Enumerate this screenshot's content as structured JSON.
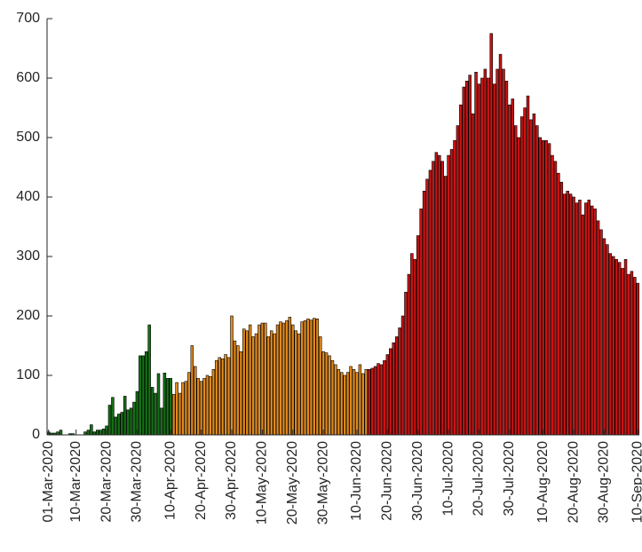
{
  "chart_data": {
    "type": "bar",
    "categories": [
      "01-Mar-2020",
      null,
      null,
      null,
      null,
      null,
      null,
      null,
      null,
      "10-Mar-2020",
      null,
      null,
      null,
      null,
      null,
      null,
      null,
      null,
      null,
      "20-Mar-2020",
      null,
      null,
      null,
      null,
      null,
      null,
      null,
      null,
      null,
      "30-Mar-2020",
      null,
      null,
      null,
      null,
      null,
      null,
      null,
      null,
      null,
      null,
      "10-Apr-2020",
      null,
      null,
      null,
      null,
      null,
      null,
      null,
      null,
      null,
      "20-Apr-2020",
      null,
      null,
      null,
      null,
      null,
      null,
      null,
      null,
      null,
      "30-Apr-2020",
      null,
      null,
      null,
      null,
      null,
      null,
      null,
      null,
      null,
      "10-May-2020",
      null,
      null,
      null,
      null,
      null,
      null,
      null,
      null,
      null,
      "20-May-2020",
      null,
      null,
      null,
      null,
      null,
      null,
      null,
      null,
      null,
      "30-May-2020",
      null,
      null,
      null,
      null,
      null,
      null,
      null,
      null,
      null,
      null,
      "10-Jun-2020",
      null,
      null,
      null,
      null,
      null,
      null,
      null,
      null,
      null,
      "20-Jun-2020",
      null,
      null,
      null,
      null,
      null,
      null,
      null,
      null,
      null,
      "30-Jun-2020",
      null,
      null,
      null,
      null,
      null,
      null,
      null,
      null,
      null,
      "10-Jul-2020",
      null,
      null,
      null,
      null,
      null,
      null,
      null,
      null,
      null,
      "20-Jul-2020",
      null,
      null,
      null,
      null,
      null,
      null,
      null,
      null,
      null,
      "30-Jul-2020",
      null,
      null,
      null,
      null,
      null,
      null,
      null,
      null,
      null,
      null,
      "10-Aug-2020",
      null,
      null,
      null,
      null,
      null,
      null,
      null,
      null,
      null,
      "20-Aug-2020",
      null,
      null,
      null,
      null,
      null,
      null,
      null,
      null,
      null,
      "30-Aug-2020",
      null,
      null,
      null,
      null,
      null,
      null,
      null,
      null,
      null,
      null,
      "10-Sep-2020"
    ],
    "series": [
      {
        "color": "#157015",
        "values": [
          5,
          3,
          3,
          5,
          8,
          0,
          0,
          2,
          2,
          0,
          0,
          0,
          5,
          8,
          17,
          5,
          8,
          8,
          10,
          15,
          50,
          63,
          30,
          35,
          38,
          65,
          42,
          45,
          55,
          73,
          133,
          133,
          140,
          185,
          80,
          70,
          103,
          45,
          104,
          95,
          95,
          null,
          null,
          null,
          null,
          null,
          null,
          null,
          null,
          null,
          null,
          null,
          null,
          null,
          null,
          null,
          null,
          null,
          null,
          null,
          null,
          null,
          null,
          null,
          null,
          null,
          null,
          null,
          null,
          null,
          null,
          null,
          null,
          null,
          null,
          null,
          null,
          null,
          null,
          null,
          null,
          null,
          null,
          null,
          null,
          null,
          null,
          null,
          null,
          null,
          null,
          null,
          null,
          null,
          null,
          null,
          null,
          null,
          null,
          null,
          null,
          null,
          null,
          null,
          null,
          null,
          null,
          null,
          null,
          null,
          null,
          null,
          null,
          null,
          null,
          null,
          null,
          null,
          null,
          null,
          null,
          null,
          null,
          null,
          null,
          null,
          null,
          null,
          null,
          null,
          null,
          null,
          null,
          null,
          null,
          null,
          null,
          null,
          null,
          null,
          null,
          null,
          null,
          null,
          null,
          null,
          null,
          null,
          null,
          null,
          null,
          null,
          null,
          null,
          null,
          null,
          null,
          null,
          null,
          null,
          null,
          null,
          null,
          null,
          null,
          null,
          null,
          null,
          null,
          null,
          null,
          null,
          null,
          null,
          null,
          null,
          null,
          null,
          null,
          null,
          null,
          null,
          null,
          null,
          null,
          null,
          null,
          null,
          null,
          null,
          null,
          null,
          null,
          null
        ]
      },
      {
        "color": "#e08a1e",
        "values": [
          null,
          null,
          null,
          null,
          null,
          null,
          null,
          null,
          null,
          null,
          null,
          null,
          null,
          null,
          null,
          null,
          null,
          null,
          null,
          null,
          null,
          null,
          null,
          null,
          null,
          null,
          null,
          null,
          null,
          null,
          null,
          null,
          null,
          null,
          null,
          null,
          null,
          null,
          null,
          null,
          null,
          68,
          88,
          70,
          88,
          90,
          105,
          150,
          115,
          95,
          90,
          95,
          100,
          98,
          110,
          125,
          130,
          128,
          135,
          130,
          200,
          158,
          150,
          140,
          178,
          175,
          185,
          165,
          170,
          185,
          188,
          188,
          165,
          175,
          170,
          185,
          190,
          188,
          192,
          198,
          185,
          175,
          170,
          190,
          192,
          195,
          193,
          196,
          195,
          165,
          140,
          138,
          133,
          125,
          118,
          110,
          105,
          100,
          105,
          115,
          110,
          105,
          118,
          103,
          110,
          null,
          null,
          null,
          null,
          null,
          null,
          null,
          null,
          null,
          null,
          null,
          null,
          null,
          null,
          null,
          null,
          null,
          null,
          null,
          null,
          null,
          null,
          null,
          null,
          null,
          null,
          null,
          null,
          null,
          null,
          null,
          null,
          null,
          null,
          null,
          null,
          null,
          null,
          null,
          null,
          null,
          null,
          null,
          null,
          null,
          null,
          null,
          null,
          null,
          null,
          null,
          null,
          null,
          null,
          null,
          null,
          null,
          null,
          null,
          null,
          null,
          null,
          null,
          null,
          null,
          null,
          null,
          null,
          null,
          null,
          null,
          null,
          null,
          null,
          null,
          null,
          null,
          null,
          null,
          null,
          null,
          null,
          null,
          null,
          null,
          null,
          null,
          null,
          null
        ]
      },
      {
        "color": "#c81414",
        "values": [
          null,
          null,
          null,
          null,
          null,
          null,
          null,
          null,
          null,
          null,
          null,
          null,
          null,
          null,
          null,
          null,
          null,
          null,
          null,
          null,
          null,
          null,
          null,
          null,
          null,
          null,
          null,
          null,
          null,
          null,
          null,
          null,
          null,
          null,
          null,
          null,
          null,
          null,
          null,
          null,
          null,
          null,
          null,
          null,
          null,
          null,
          null,
          null,
          null,
          null,
          null,
          null,
          null,
          null,
          null,
          null,
          null,
          null,
          null,
          null,
          null,
          null,
          null,
          null,
          null,
          null,
          null,
          null,
          null,
          null,
          null,
          null,
          null,
          null,
          null,
          null,
          null,
          null,
          null,
          null,
          null,
          null,
          null,
          null,
          null,
          null,
          null,
          null,
          null,
          null,
          null,
          null,
          null,
          null,
          null,
          null,
          null,
          null,
          null,
          null,
          null,
          null,
          null,
          null,
          null,
          110,
          112,
          115,
          120,
          118,
          125,
          135,
          145,
          155,
          165,
          180,
          200,
          240,
          270,
          305,
          295,
          335,
          380,
          410,
          430,
          445,
          460,
          475,
          470,
          460,
          435,
          470,
          480,
          495,
          520,
          555,
          585,
          595,
          605,
          540,
          610,
          590,
          600,
          615,
          600,
          675,
          590,
          615,
          640,
          615,
          595,
          555,
          565,
          520,
          500,
          535,
          550,
          570,
          530,
          540,
          520,
          500,
          495,
          495,
          490,
          470,
          460,
          440,
          425,
          405,
          410,
          405,
          400,
          390,
          395,
          370,
          390,
          395,
          385,
          380,
          360,
          345,
          330,
          320,
          305,
          300,
          295,
          290,
          280,
          295,
          270,
          275,
          265,
          255
        ]
      }
    ],
    "ylim": [
      0,
      700
    ],
    "yticks": [
      0,
      100,
      200,
      300,
      400,
      500,
      600,
      700
    ]
  }
}
